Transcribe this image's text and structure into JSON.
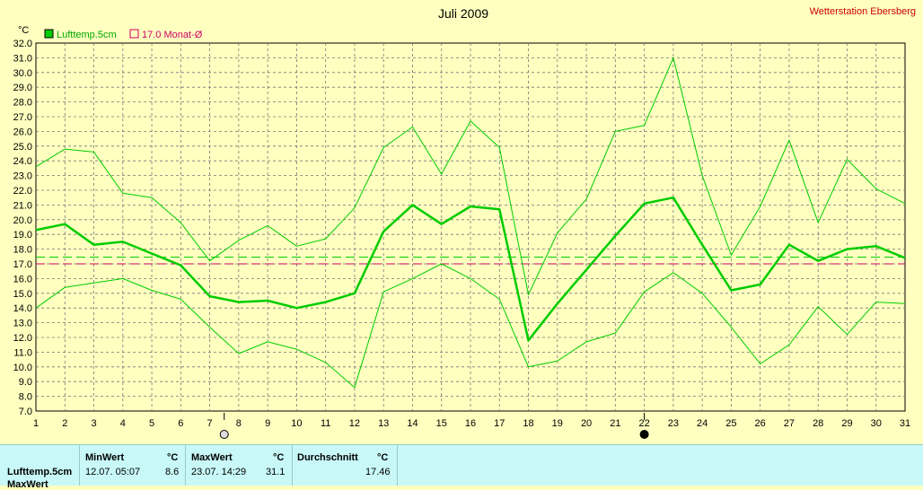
{
  "chart_data": {
    "type": "line",
    "title": "Juli 2009",
    "station": "Wetterstation Ebersberg",
    "ylabel": "°C",
    "ylim": [
      7.0,
      32.0
    ],
    "yticks": [
      "7.0",
      "8.0",
      "9.0",
      "10.0",
      "11.0",
      "12.0",
      "13.0",
      "14.0",
      "15.0",
      "16.0",
      "17.0",
      "18.0",
      "19.0",
      "20.0",
      "21.0",
      "22.0",
      "23.0",
      "24.0",
      "25.0",
      "26.0",
      "27.0",
      "28.0",
      "29.0",
      "30.0",
      "31.0",
      "32.0"
    ],
    "x": [
      1,
      2,
      3,
      4,
      5,
      6,
      7,
      8,
      9,
      10,
      11,
      12,
      13,
      14,
      15,
      16,
      17,
      18,
      19,
      20,
      21,
      22,
      23,
      24,
      25,
      26,
      27,
      28,
      29,
      30,
      31
    ],
    "series": [
      {
        "name": "Lufttemp.5cm",
        "color": "#00cc00",
        "values": [
          19.3,
          19.7,
          18.3,
          18.5,
          17.7,
          16.9,
          14.8,
          14.4,
          14.5,
          14.0,
          14.4,
          15.0,
          19.2,
          21.0,
          19.7,
          20.9,
          20.7,
          11.8,
          14.3,
          16.6,
          18.9,
          21.1,
          21.5,
          18.3,
          15.2,
          15.6,
          18.3,
          17.2,
          18.0,
          18.2,
          17.4
        ]
      },
      {
        "name": "max",
        "color": "#00cc00",
        "values": [
          23.6,
          24.8,
          24.6,
          21.8,
          21.5,
          19.8,
          17.2,
          18.6,
          19.6,
          18.2,
          18.7,
          20.8,
          24.9,
          26.3,
          23.1,
          26.7,
          24.9,
          14.9,
          19.1,
          21.4,
          26.0,
          26.4,
          31.0,
          23.0,
          17.6,
          20.9,
          25.4,
          19.8,
          24.1,
          22.1,
          21.1
        ]
      },
      {
        "name": "min",
        "color": "#00cc00",
        "values": [
          14.0,
          15.4,
          15.7,
          16.0,
          15.2,
          14.6,
          12.7,
          10.9,
          11.7,
          11.2,
          10.3,
          8.6,
          15.1,
          16.0,
          17.0,
          16.0,
          14.6,
          10.0,
          10.4,
          11.7,
          12.3,
          15.1,
          16.4,
          15.0,
          12.7,
          10.2,
          11.5,
          14.1,
          12.2,
          14.4,
          14.3
        ]
      }
    ],
    "mean_line": 17.46,
    "monat_line": 17.0,
    "legend": [
      {
        "label": "Lufttemp.5cm",
        "color": "#00cc00"
      },
      {
        "label": "17.0 Monat-Ø",
        "color": "#cc0066"
      }
    ],
    "moon_markers": [
      {
        "day": 7.5,
        "phase": "full"
      },
      {
        "day": 22,
        "phase": "new"
      }
    ],
    "grid": true
  },
  "stats": {
    "row_label": "Lufttemp.5cm",
    "row2_label": "MaxWert",
    "min_header": "MinWert",
    "max_header": "MaxWert",
    "avg_header": "Durchschnitt",
    "unit": "°C",
    "min_time": "12.07.  05:07",
    "min_value": "8.6",
    "max_time": "23.07.  14:29",
    "max_value": "31.1",
    "avg_value": "17.46"
  }
}
